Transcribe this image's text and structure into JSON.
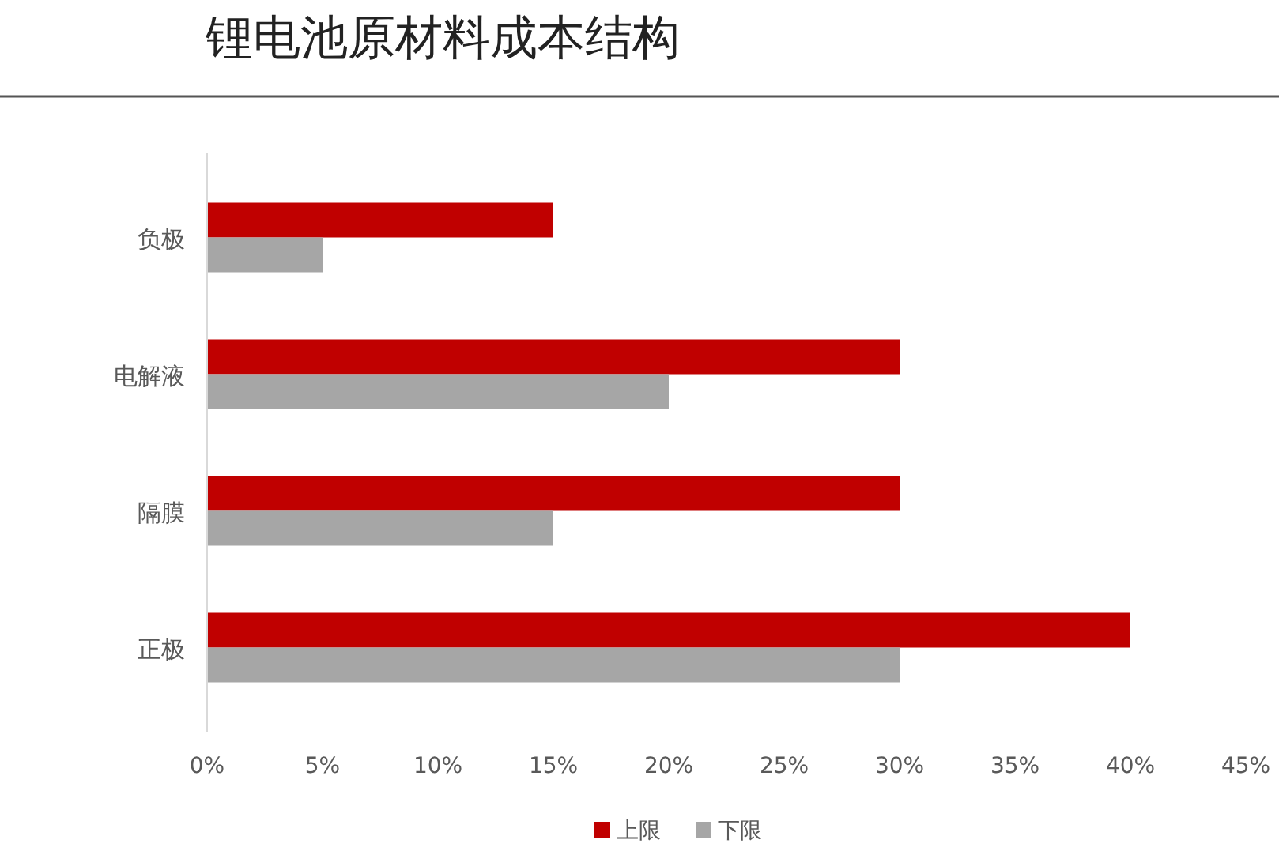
{
  "chart_data": {
    "type": "bar",
    "orientation": "horizontal",
    "title": "锂电池原材料成本结构",
    "categories": [
      "负极",
      "电解液",
      "隔膜",
      "正极"
    ],
    "series": [
      {
        "name": "上限",
        "color": "#c00000",
        "values": [
          15,
          30,
          30,
          40
        ]
      },
      {
        "name": "下限",
        "color": "#a6a6a6",
        "values": [
          5,
          20,
          15,
          30
        ]
      }
    ],
    "xlim": [
      0,
      45
    ],
    "xticks": [
      {
        "value": 0,
        "label": "0%"
      },
      {
        "value": 5,
        "label": "5%"
      },
      {
        "value": 10,
        "label": "10%"
      },
      {
        "value": 15,
        "label": "15%"
      },
      {
        "value": 20,
        "label": "20%"
      },
      {
        "value": 25,
        "label": "25%"
      },
      {
        "value": 30,
        "label": "30%"
      },
      {
        "value": 35,
        "label": "35%"
      },
      {
        "value": 40,
        "label": "40%"
      },
      {
        "value": 45,
        "label": "45%"
      }
    ],
    "grid": false,
    "legend": "bottom"
  }
}
